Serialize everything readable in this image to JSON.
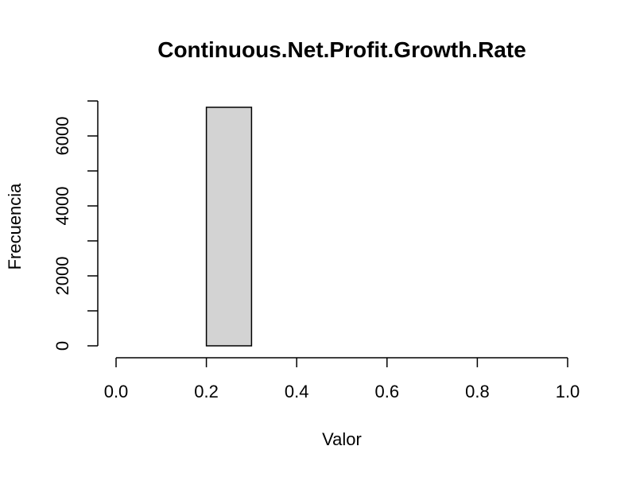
{
  "chart_data": {
    "type": "bar",
    "title": "Continuous.Net.Profit.Growth.Rate",
    "xlabel": "Valor",
    "ylabel": "Frecuencia",
    "bins": [
      {
        "from": 0.0,
        "to": 0.1,
        "value": 0
      },
      {
        "from": 0.1,
        "to": 0.2,
        "value": 0
      },
      {
        "from": 0.2,
        "to": 0.3,
        "value": 6819
      },
      {
        "from": 0.3,
        "to": 0.4,
        "value": 0
      },
      {
        "from": 0.4,
        "to": 0.5,
        "value": 0
      },
      {
        "from": 0.5,
        "to": 0.6,
        "value": 0
      },
      {
        "from": 0.6,
        "to": 0.7,
        "value": 0
      },
      {
        "from": 0.7,
        "to": 0.8,
        "value": 0
      },
      {
        "from": 0.8,
        "to": 0.9,
        "value": 0
      },
      {
        "from": 0.9,
        "to": 1.0,
        "value": 0
      }
    ],
    "xlim": [
      0,
      1
    ],
    "ylim": [
      0,
      7000
    ],
    "x_ticks": [
      "0.0",
      "0.2",
      "0.4",
      "0.6",
      "0.8",
      "1.0"
    ],
    "x_tick_values": [
      0,
      0.2,
      0.4,
      0.6,
      0.8,
      1.0
    ],
    "y_ticks": [
      "0",
      "2000",
      "4000",
      "6000"
    ],
    "y_tick_values": [
      0,
      2000,
      4000,
      6000
    ],
    "y_minor_tick_values": [
      1000,
      3000,
      5000,
      7000
    ],
    "bar_color": "#d3d3d3",
    "grid": false,
    "legend": "none"
  }
}
